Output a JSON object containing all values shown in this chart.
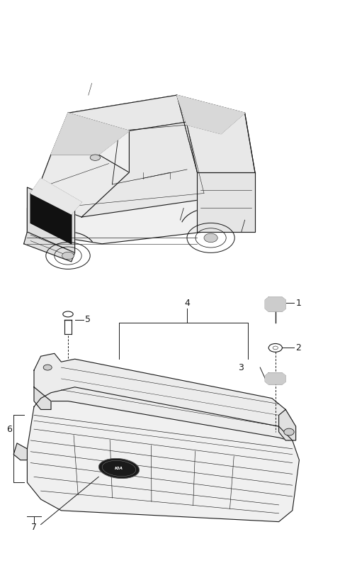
{
  "bg_color": "#ffffff",
  "fig_width": 4.8,
  "fig_height": 7.91,
  "dpi": 100,
  "line_color": "#1a1a1a",
  "gray_fill": "#e8e8e8",
  "dark_fill": "#111111"
}
